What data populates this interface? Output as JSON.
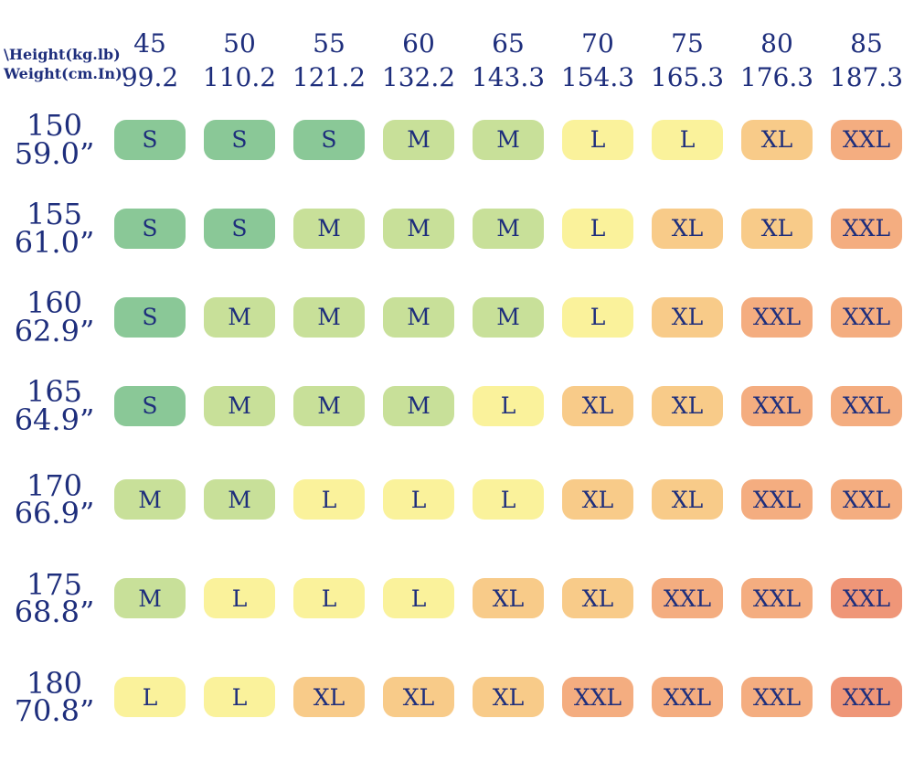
{
  "colors": {
    "background": "#ffffff",
    "text": "#1e2e7c",
    "palette": {
      "S": "#8ac897",
      "M": "#c8e099",
      "L": "#faf29b",
      "XL": "#f8cb89",
      "XXL": "#f4ad80",
      "XXL_HOT": "#ef9678"
    }
  },
  "chart_data": {
    "type": "heatmap",
    "corner": {
      "line1": "\\Height(kg.lb)",
      "line2": "Weight(cm.In)\\"
    },
    "columns": [
      {
        "kg": "45",
        "lb": "99.2"
      },
      {
        "kg": "50",
        "lb": "110.2"
      },
      {
        "kg": "55",
        "lb": "121.2"
      },
      {
        "kg": "60",
        "lb": "132.2"
      },
      {
        "kg": "65",
        "lb": "143.3"
      },
      {
        "kg": "70",
        "lb": "154.3"
      },
      {
        "kg": "75",
        "lb": "165.3"
      },
      {
        "kg": "80",
        "lb": "176.3"
      },
      {
        "kg": "85",
        "lb": "187.3"
      }
    ],
    "rows": [
      {
        "cm": "150",
        "inch": "59.0”",
        "cells": [
          "S",
          "S",
          "S",
          "M",
          "M",
          "L",
          "L",
          "XL",
          "XXL"
        ]
      },
      {
        "cm": "155",
        "inch": "61.0”",
        "cells": [
          "S",
          "S",
          "M",
          "M",
          "M",
          "L",
          "XL",
          "XL",
          "XXL"
        ]
      },
      {
        "cm": "160",
        "inch": "62.9”",
        "cells": [
          "S",
          "M",
          "M",
          "M",
          "M",
          "L",
          "XL",
          "XXL",
          "XXL"
        ]
      },
      {
        "cm": "165",
        "inch": "64.9”",
        "cells": [
          "S",
          "M",
          "M",
          "M",
          "L",
          "XL",
          "XL",
          "XXL",
          "XXL"
        ]
      },
      {
        "cm": "170",
        "inch": "66.9”",
        "cells": [
          "M",
          "M",
          "L",
          "L",
          "L",
          "XL",
          "XL",
          "XXL",
          "XXL"
        ]
      },
      {
        "cm": "175",
        "inch": "68.8”",
        "cells": [
          "M",
          "L",
          "L",
          "L",
          "XL",
          "XL",
          "XXL",
          "XXL",
          {
            "size": "XXL",
            "tone": "XXL_HOT"
          }
        ]
      },
      {
        "cm": "180",
        "inch": "70.8”",
        "cells": [
          "L",
          "L",
          "XL",
          "XL",
          "XL",
          "XXL",
          "XXL",
          "XXL",
          {
            "size": "XXL",
            "tone": "XXL_HOT"
          }
        ]
      }
    ],
    "sizes": [
      "S",
      "M",
      "L",
      "XL",
      "XXL"
    ]
  }
}
